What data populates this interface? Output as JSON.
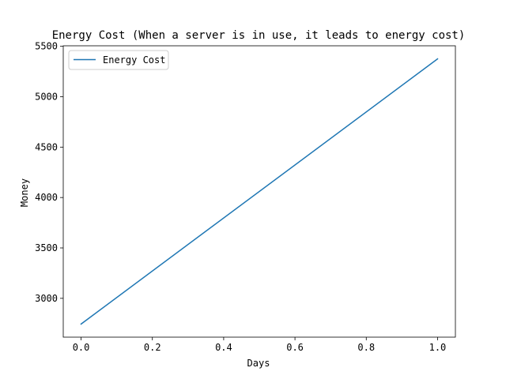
{
  "chart_data": {
    "type": "line",
    "title": "Energy Cost (When a server is in use, it leads to energy cost)",
    "xlabel": "Days",
    "ylabel": "Money",
    "xlim": [
      -0.05,
      1.05
    ],
    "ylim": [
      2615,
      5505
    ],
    "x_ticks": [
      "0.0",
      "0.2",
      "0.4",
      "0.6",
      "0.8",
      "1.0"
    ],
    "y_ticks": [
      "3000",
      "3500",
      "4000",
      "4500",
      "5000",
      "5500"
    ],
    "grid": false,
    "legend_position": "upper-left",
    "series": [
      {
        "name": "Energy Cost",
        "color": "#1f77b4",
        "x": [
          0.0,
          1.0
        ],
        "y": [
          2745,
          5375
        ]
      }
    ]
  }
}
